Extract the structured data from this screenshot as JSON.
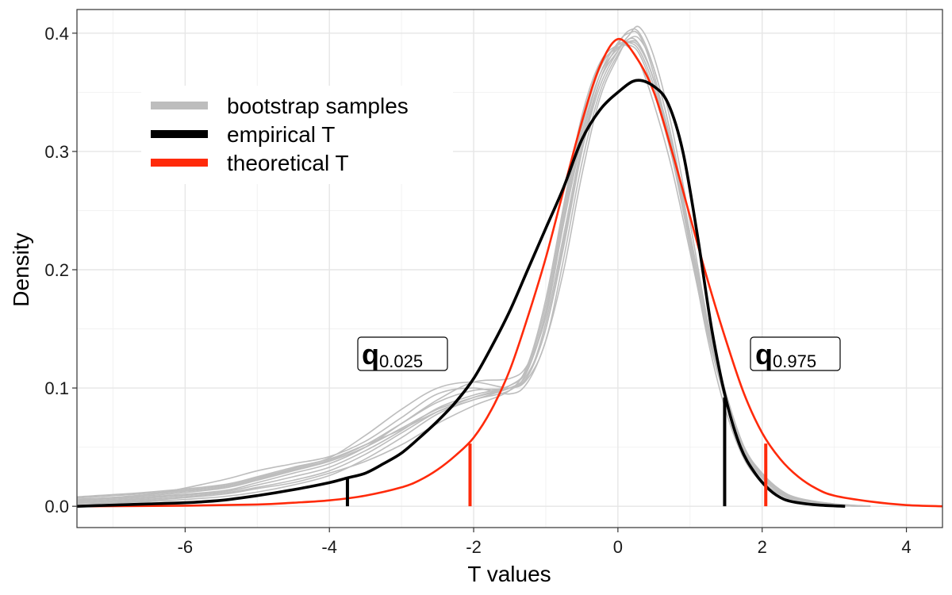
{
  "chart_data": {
    "type": "line",
    "xlabel": "T values",
    "ylabel": "Density",
    "xlim": [
      -7.5,
      4.5
    ],
    "ylim": [
      -0.018,
      0.42
    ],
    "xticks": [
      -6,
      -4,
      -2,
      0,
      2,
      4
    ],
    "xtick_labels": [
      "-6",
      "-4",
      "-2",
      "0",
      "2",
      "4"
    ],
    "yticks": [
      0.0,
      0.1,
      0.2,
      0.3,
      0.4
    ],
    "ytick_labels": [
      "0.0",
      "0.1",
      "0.2",
      "0.3",
      "0.4"
    ],
    "grid": true,
    "legend_position": "top-left",
    "legend": [
      {
        "label": "bootstrap samples",
        "color": "#bdbdbd"
      },
      {
        "label": "empirical T",
        "color": "#000000"
      },
      {
        "label": "theoretical T",
        "color": "#ff2a0a"
      }
    ],
    "theoretical_t": {
      "color": "#ff2a0a",
      "x": [
        -7.5,
        -6,
        -5,
        -4.5,
        -4,
        -3.5,
        -3,
        -2.75,
        -2.5,
        -2.25,
        -2,
        -1.75,
        -1.5,
        -1.25,
        -1,
        -0.75,
        -0.5,
        -0.25,
        0,
        0.25,
        0.5,
        0.75,
        1,
        1.25,
        1.5,
        1.75,
        2,
        2.25,
        2.5,
        2.75,
        3,
        3.5,
        4,
        4.5
      ],
      "y": [
        0.0,
        0.0005,
        0.0015,
        0.003,
        0.005,
        0.009,
        0.016,
        0.022,
        0.031,
        0.043,
        0.058,
        0.082,
        0.115,
        0.16,
        0.21,
        0.268,
        0.325,
        0.372,
        0.395,
        0.38,
        0.35,
        0.3,
        0.245,
        0.19,
        0.14,
        0.095,
        0.062,
        0.04,
        0.025,
        0.015,
        0.009,
        0.004,
        0.001,
        0.0
      ]
    },
    "empirical_t": {
      "color": "#000000",
      "x": [
        -7.5,
        -7,
        -6.5,
        -6,
        -5.5,
        -5,
        -4.5,
        -4,
        -3.75,
        -3.5,
        -3.25,
        -3,
        -2.75,
        -2.5,
        -2.25,
        -2,
        -1.75,
        -1.5,
        -1.25,
        -1,
        -0.75,
        -0.5,
        -0.25,
        0,
        0.25,
        0.5,
        0.7,
        0.9,
        1.1,
        1.3,
        1.5,
        1.7,
        1.9,
        2.1,
        2.3,
        2.5,
        2.8,
        3.15
      ],
      "y": [
        0.0,
        0.001,
        0.002,
        0.003,
        0.005,
        0.009,
        0.014,
        0.02,
        0.024,
        0.028,
        0.036,
        0.045,
        0.058,
        0.072,
        0.088,
        0.108,
        0.135,
        0.165,
        0.2,
        0.235,
        0.27,
        0.31,
        0.335,
        0.35,
        0.36,
        0.355,
        0.34,
        0.3,
        0.23,
        0.15,
        0.09,
        0.05,
        0.028,
        0.014,
        0.006,
        0.003,
        0.001,
        0.0
      ]
    },
    "bootstrap_samples": {
      "color": "#bdbdbd",
      "curves": [
        {
          "x": [
            -7.5,
            -6.5,
            -5.5,
            -5,
            -4.5,
            -4,
            -3.5,
            -3,
            -2.5,
            -2,
            -1.5,
            -1.25,
            -1,
            -0.75,
            -0.5,
            -0.25,
            0,
            0.15,
            0.3,
            0.5,
            0.75,
            1,
            1.25,
            1.5,
            1.75,
            2,
            2.25,
            2.5,
            3,
            3.5
          ],
          "y": [
            0.008,
            0.012,
            0.018,
            0.025,
            0.033,
            0.04,
            0.052,
            0.065,
            0.08,
            0.09,
            0.1,
            0.11,
            0.15,
            0.22,
            0.3,
            0.36,
            0.39,
            0.402,
            0.4,
            0.37,
            0.31,
            0.23,
            0.15,
            0.09,
            0.045,
            0.025,
            0.012,
            0.006,
            0.002,
            0.0
          ]
        },
        {
          "x": [
            -7.5,
            -6.5,
            -5.5,
            -5,
            -4.5,
            -4,
            -3.5,
            -3,
            -2.5,
            -2,
            -1.5,
            -1.25,
            -1,
            -0.75,
            -0.5,
            -0.25,
            0,
            0.15,
            0.3,
            0.5,
            0.75,
            1,
            1.25,
            1.5,
            1.75,
            2,
            2.25,
            2.5,
            3,
            3.5
          ],
          "y": [
            0.004,
            0.008,
            0.013,
            0.02,
            0.028,
            0.036,
            0.05,
            0.07,
            0.09,
            0.105,
            0.108,
            0.12,
            0.16,
            0.24,
            0.31,
            0.365,
            0.392,
            0.4,
            0.398,
            0.365,
            0.3,
            0.22,
            0.14,
            0.08,
            0.04,
            0.02,
            0.01,
            0.005,
            0.001,
            0.0
          ]
        },
        {
          "x": [
            -7.5,
            -6.5,
            -5.5,
            -5,
            -4.5,
            -4,
            -3.5,
            -3,
            -2.5,
            -2,
            -1.5,
            -1.25,
            -1,
            -0.75,
            -0.5,
            -0.25,
            0,
            0.15,
            0.3,
            0.5,
            0.75,
            1,
            1.25,
            1.5,
            1.75,
            2,
            2.25,
            2.5,
            3,
            3.5
          ],
          "y": [
            0.006,
            0.01,
            0.022,
            0.03,
            0.036,
            0.042,
            0.055,
            0.075,
            0.095,
            0.1,
            0.095,
            0.105,
            0.14,
            0.2,
            0.28,
            0.345,
            0.38,
            0.395,
            0.39,
            0.36,
            0.305,
            0.23,
            0.155,
            0.095,
            0.05,
            0.028,
            0.014,
            0.007,
            0.002,
            0.0
          ]
        },
        {
          "x": [
            -7.5,
            -6.5,
            -5.5,
            -5,
            -4.5,
            -4,
            -3.5,
            -3,
            -2.5,
            -2,
            -1.5,
            -1.25,
            -1,
            -0.75,
            -0.5,
            -0.25,
            0,
            0.15,
            0.3,
            0.5,
            0.75,
            1,
            1.25,
            1.5,
            1.75,
            2,
            2.25,
            2.5,
            3,
            3.5
          ],
          "y": [
            0.002,
            0.004,
            0.008,
            0.012,
            0.018,
            0.026,
            0.04,
            0.058,
            0.078,
            0.09,
            0.098,
            0.115,
            0.165,
            0.245,
            0.32,
            0.37,
            0.39,
            0.392,
            0.385,
            0.355,
            0.3,
            0.225,
            0.15,
            0.09,
            0.048,
            0.025,
            0.012,
            0.006,
            0.001,
            0.0
          ]
        },
        {
          "x": [
            -7.5,
            -6.5,
            -5.5,
            -5,
            -4.5,
            -4,
            -3.5,
            -3,
            -2.5,
            -2,
            -1.5,
            -1.25,
            -1,
            -0.75,
            -0.5,
            -0.25,
            0,
            0.15,
            0.3,
            0.5,
            0.75,
            1,
            1.25,
            1.5,
            1.75,
            2,
            2.25,
            2.5,
            3,
            3.5
          ],
          "y": [
            0.005,
            0.009,
            0.015,
            0.022,
            0.03,
            0.038,
            0.05,
            0.066,
            0.082,
            0.092,
            0.1,
            0.112,
            0.15,
            0.225,
            0.3,
            0.355,
            0.385,
            0.398,
            0.405,
            0.38,
            0.32,
            0.24,
            0.155,
            0.09,
            0.045,
            0.022,
            0.01,
            0.005,
            0.001,
            0.0
          ]
        },
        {
          "x": [
            -7.5,
            -6.5,
            -5.5,
            -5,
            -4.5,
            -4,
            -3.5,
            -3,
            -2.5,
            -2,
            -1.5,
            -1.25,
            -1,
            -0.75,
            -0.5,
            -0.25,
            0,
            0.15,
            0.3,
            0.5,
            0.75,
            1,
            1.25,
            1.5,
            1.75,
            2,
            2.25,
            2.5,
            3,
            3.5
          ],
          "y": [
            0.003,
            0.006,
            0.011,
            0.016,
            0.022,
            0.03,
            0.044,
            0.062,
            0.08,
            0.092,
            0.102,
            0.118,
            0.17,
            0.25,
            0.325,
            0.372,
            0.388,
            0.39,
            0.382,
            0.35,
            0.295,
            0.22,
            0.145,
            0.088,
            0.046,
            0.024,
            0.011,
            0.005,
            0.001,
            0.0
          ]
        },
        {
          "x": [
            -7.5,
            -6.5,
            -5.5,
            -5,
            -4.5,
            -4,
            -3.5,
            -3,
            -2.5,
            -2,
            -1.5,
            -1.25,
            -1,
            -0.75,
            -0.5,
            -0.25,
            0,
            0.15,
            0.3,
            0.5,
            0.75,
            1,
            1.25,
            1.5,
            1.75,
            2,
            2.25,
            2.5,
            3,
            3.5
          ],
          "y": [
            0.007,
            0.011,
            0.017,
            0.024,
            0.032,
            0.041,
            0.06,
            0.082,
            0.1,
            0.105,
            0.1,
            0.108,
            0.14,
            0.21,
            0.29,
            0.35,
            0.382,
            0.392,
            0.388,
            0.36,
            0.305,
            0.23,
            0.155,
            0.095,
            0.05,
            0.026,
            0.013,
            0.006,
            0.001,
            0.0
          ]
        },
        {
          "x": [
            -7.5,
            -6.5,
            -5.5,
            -5,
            -4.5,
            -4,
            -3.5,
            -3,
            -2.5,
            -2,
            -1.5,
            -1.25,
            -1,
            -0.75,
            -0.5,
            -0.25,
            0,
            0.15,
            0.3,
            0.5,
            0.75,
            1,
            1.25,
            1.5,
            1.75,
            2,
            2.25,
            2.5,
            3,
            3.5
          ],
          "y": [
            0.002,
            0.005,
            0.01,
            0.015,
            0.02,
            0.028,
            0.038,
            0.052,
            0.07,
            0.085,
            0.098,
            0.12,
            0.175,
            0.255,
            0.33,
            0.375,
            0.39,
            0.388,
            0.375,
            0.34,
            0.285,
            0.215,
            0.145,
            0.09,
            0.05,
            0.027,
            0.013,
            0.006,
            0.001,
            0.0
          ]
        },
        {
          "x": [
            -7.5,
            -6.5,
            -5.5,
            -5,
            -4.5,
            -4,
            -3.5,
            -3,
            -2.5,
            -2,
            -1.5,
            -1.25,
            -1,
            -0.75,
            -0.5,
            -0.25,
            0,
            0.15,
            0.3,
            0.5,
            0.75,
            1,
            1.25,
            1.5,
            1.75,
            2,
            2.25,
            2.5,
            3,
            3.5
          ],
          "y": [
            0.005,
            0.01,
            0.016,
            0.023,
            0.031,
            0.039,
            0.052,
            0.07,
            0.088,
            0.098,
            0.1,
            0.11,
            0.155,
            0.23,
            0.305,
            0.36,
            0.385,
            0.395,
            0.395,
            0.37,
            0.31,
            0.23,
            0.15,
            0.088,
            0.044,
            0.021,
            0.01,
            0.004,
            0.001,
            0.0
          ]
        },
        {
          "x": [
            -7.5,
            -6.5,
            -5.5,
            -5,
            -4.5,
            -4,
            -3.5,
            -3,
            -2.5,
            -2,
            -1.5,
            -1.25,
            -1,
            -0.75,
            -0.5,
            -0.25,
            0,
            0.15,
            0.3,
            0.5,
            0.75,
            1,
            1.25,
            1.5,
            1.75,
            2,
            2.25,
            2.5,
            3,
            3.5
          ],
          "y": [
            0.003,
            0.007,
            0.012,
            0.018,
            0.025,
            0.033,
            0.047,
            0.064,
            0.083,
            0.094,
            0.102,
            0.116,
            0.162,
            0.24,
            0.315,
            0.365,
            0.387,
            0.393,
            0.39,
            0.36,
            0.3,
            0.225,
            0.15,
            0.092,
            0.048,
            0.025,
            0.012,
            0.005,
            0.001,
            0.0
          ]
        }
      ]
    },
    "quantile_lines": [
      {
        "name": "empirical q0.025",
        "x": -3.75,
        "y": 0.024,
        "color": "#000000"
      },
      {
        "name": "theoretical q0.025",
        "x": -2.05,
        "y": 0.053,
        "color": "#ff2a0a"
      },
      {
        "name": "empirical q0.975",
        "x": 1.48,
        "y": 0.092,
        "color": "#000000"
      },
      {
        "name": "theoretical q0.975",
        "x": 2.05,
        "y": 0.053,
        "color": "#ff2a0a"
      }
    ],
    "annotations": [
      {
        "main": "q",
        "sub": "0.025",
        "x": -2.95,
        "y": 0.129
      },
      {
        "main": "q",
        "sub": "0.975",
        "x": 2.48,
        "y": 0.129
      }
    ]
  }
}
